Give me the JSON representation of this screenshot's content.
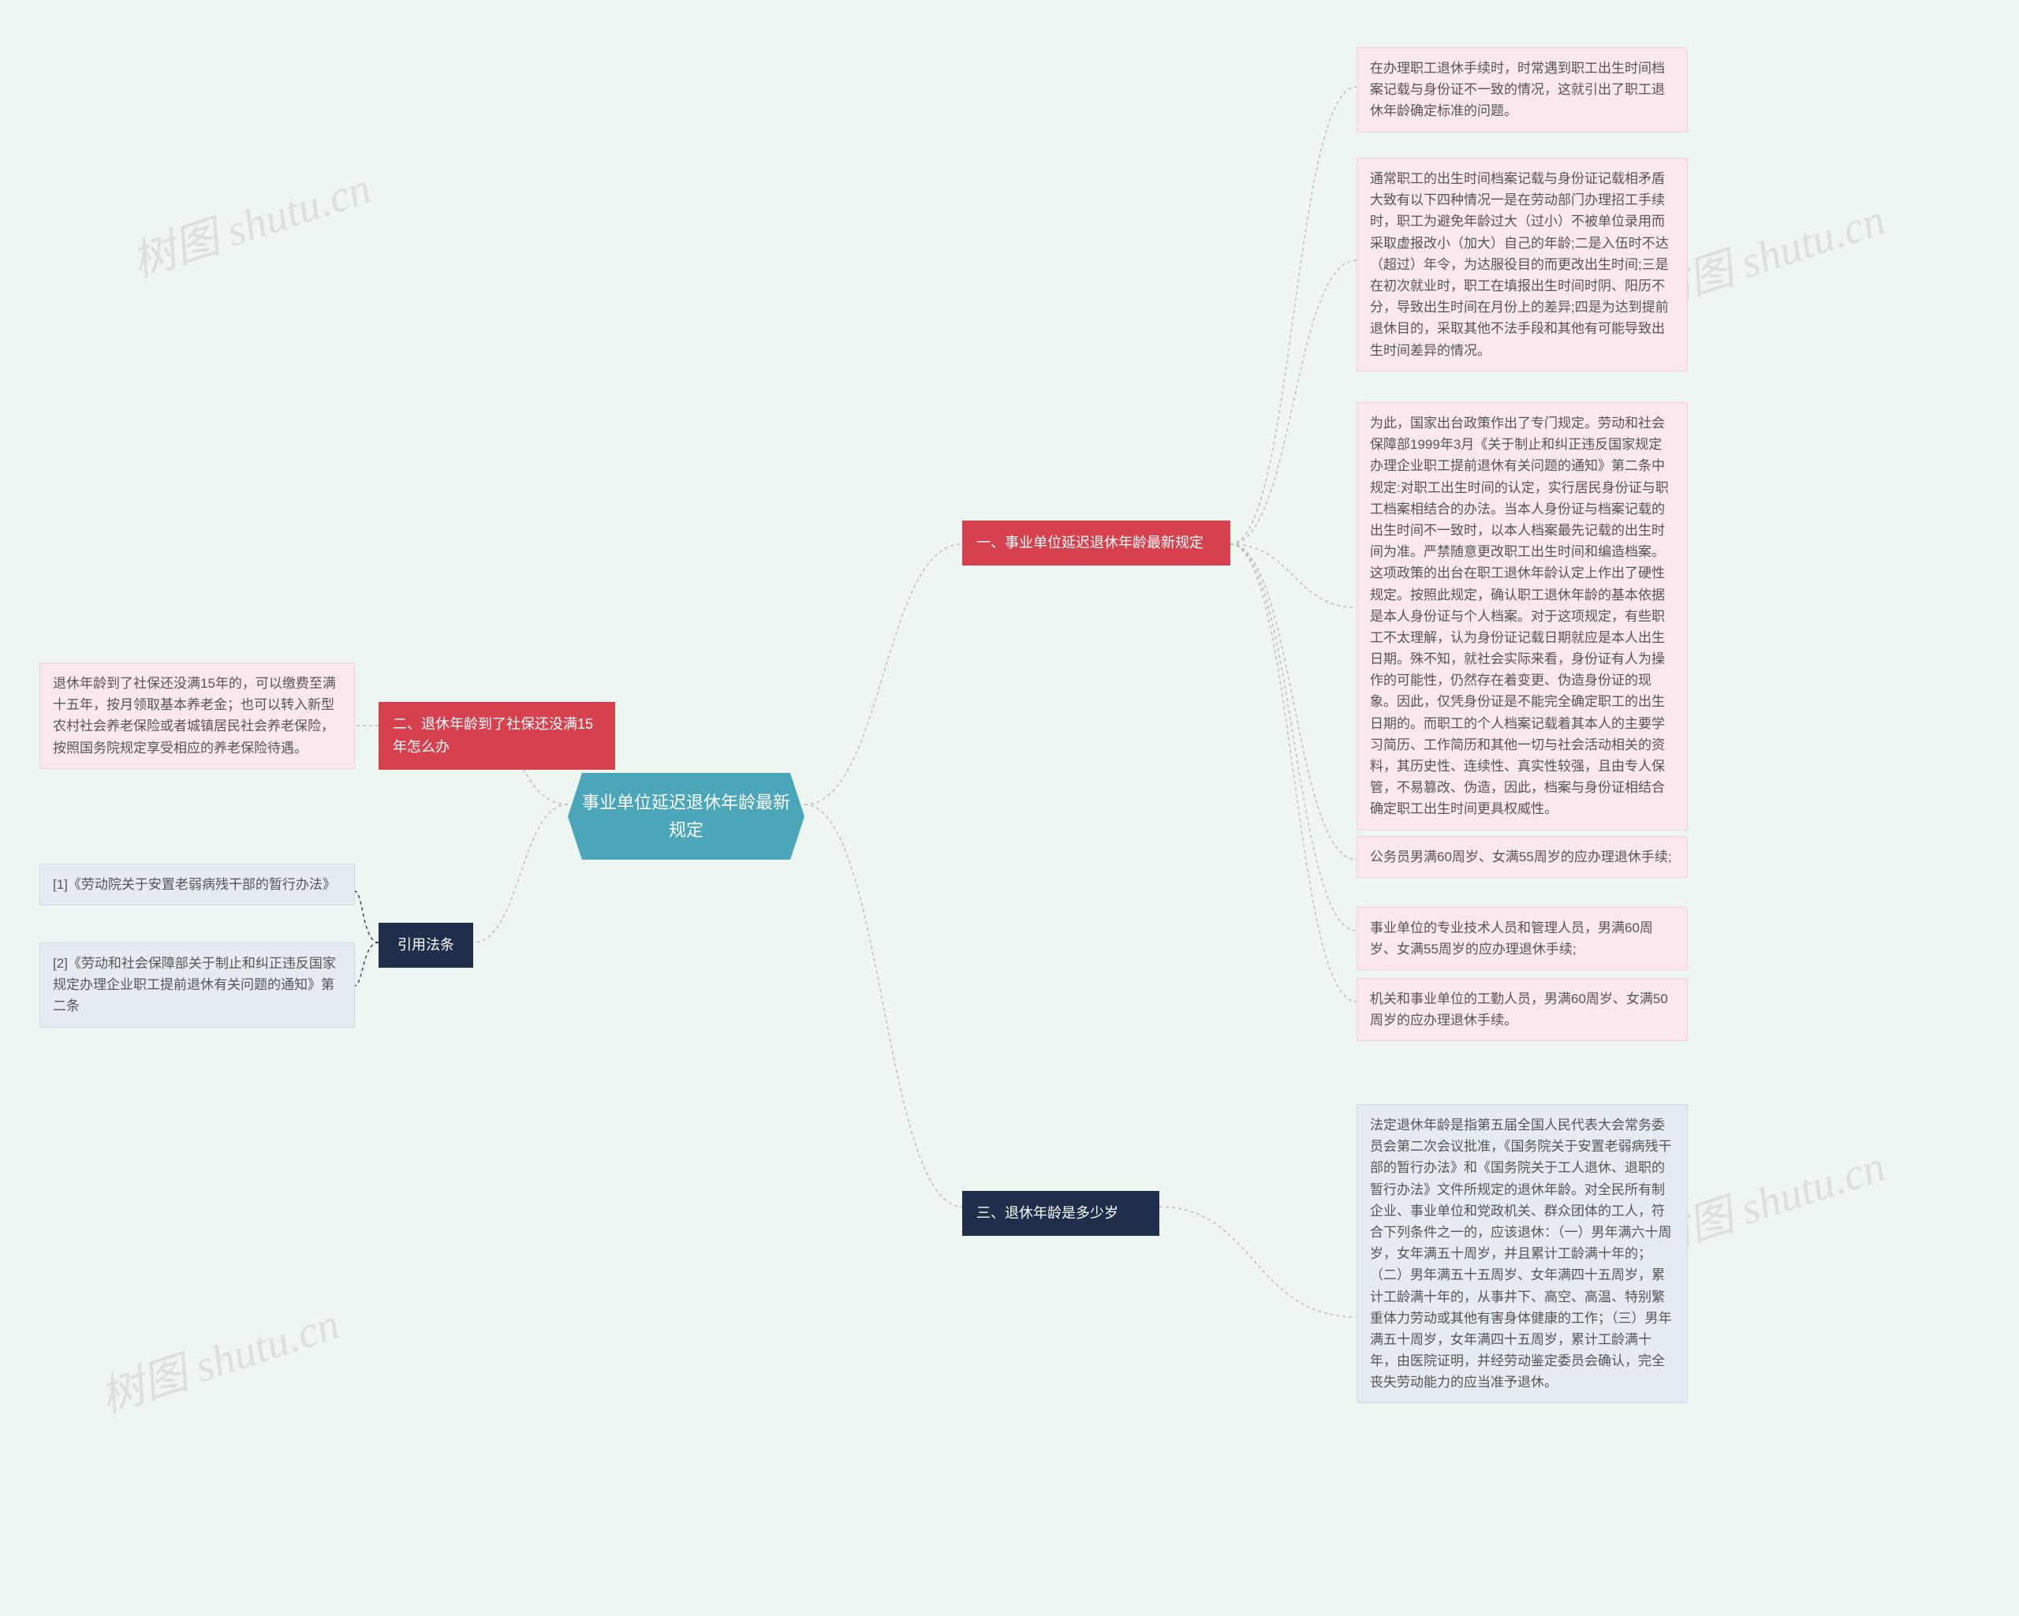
{
  "colors": {
    "page_bg": "#edf6f1",
    "root_bg": "#4aa6b8",
    "branch_red": "#d7414e",
    "branch_navy": "#1f2e4a",
    "leaf_pink_bg": "#fbe8ec",
    "leaf_pink_border": "#f3d0d7",
    "leaf_blue_bg": "#e4ebf3",
    "leaf_blue_border": "#cfd9e6",
    "connector": "#b8b8b8",
    "connector_navy": "#2b3a57",
    "watermark": "rgba(120,120,120,0.16)"
  },
  "watermark_text": "树图 shutu.cn",
  "root": {
    "title": "事业单位延迟退休年龄最新规定"
  },
  "branch1": {
    "title": "一、事业单位延迟退休年龄最新规定",
    "leaf1": "在办理职工退休手续时，时常遇到职工出生时间档案记载与身份证不一致的情况，这就引出了职工退休年龄确定标准的问题。",
    "leaf2": "通常职工的出生时间档案记载与身份证记载相矛盾大致有以下四种情况一是在劳动部门办理招工手续时，职工为避免年龄过大（过小）不被单位录用而采取虚报改小（加大）自己的年龄;二是入伍时不达（超过）年令，为达服役目的而更改出生时间;三是在初次就业时，职工在填报出生时间时阴、阳历不分，导致出生时间在月份上的差异;四是为达到提前退休目的，采取其他不法手段和其他有可能导致出生时间差异的情况。",
    "leaf3": "为此，国家出台政策作出了专门规定。劳动和社会保障部1999年3月《关于制止和纠正违反国家规定办理企业职工提前退休有关问题的通知》第二条中规定:对职工出生时间的认定，实行居民身份证与职工档案相结合的办法。当本人身份证与档案记载的出生时间不一致时，以本人档案最先记载的出生时间为准。严禁随意更改职工出生时间和编造档案。这项政策的出台在职工退休年龄认定上作出了硬性规定。按照此规定，确认职工退休年龄的基本依据是本人身份证与个人档案。对于这项规定，有些职工不太理解，认为身份证记载日期就应是本人出生日期。殊不知，就社会实际来看，身份证有人为操作的可能性，仍然存在着变更、伪造身份证的现象。因此，仅凭身份证是不能完全确定职工的出生日期的。而职工的个人档案记载着其本人的主要学习简历、工作简历和其他一切与社会活动相关的资料，其历史性、连续性、真实性较强，且由专人保管，不易篡改、伪造，因此，档案与身份证相结合确定职工出生时间更具权威性。",
    "leaf4": "公务员男满60周岁、女满55周岁的应办理退休手续;",
    "leaf5": "事业单位的专业技术人员和管理人员，男满60周岁、女满55周岁的应办理退休手续;",
    "leaf6": "机关和事业单位的工勤人员，男满60周岁、女满50周岁的应办理退休手续。"
  },
  "branch2": {
    "title": "二、退休年龄到了社保还没满15年怎么办",
    "leaf1": "退休年龄到了社保还没满15年的，可以缴费至满十五年，按月领取基本养老金；也可以转入新型农村社会养老保险或者城镇居民社会养老保险，按照国务院规定享受相应的养老保险待遇。"
  },
  "branch3": {
    "title": "三、退休年龄是多少岁",
    "leaf1": "法定退休年龄是指第五届全国人民代表大会常务委员会第二次会议批准，《国务院关于安置老弱病残干部的暂行办法》和《国务院关于工人退休、退职的暂行办法》文件所规定的退休年龄。对全民所有制企业、事业单位和党政机关、群众团体的工人，符合下列条件之一的，应该退休：（一）男年满六十周岁，女年满五十周岁，并且累计工龄满十年的；（二）男年满五十五周岁、女年满四十五周岁，累计工龄满十年的，从事井下、高空、高温、特别繁重体力劳动或其他有害身体健康的工作；（三）男年满五十周岁，女年满四十五周岁，累计工龄满十年，由医院证明，并经劳动鉴定委员会确认，完全丧失劳动能力的应当准予退休。"
  },
  "branch4": {
    "title": "引用法条",
    "leaf1": "[1]《劳动院关于安置老弱病残干部的暂行办法》",
    "leaf2": "[2]《劳动和社会保障部关于制止和纠正违反国家规定办理企业职工提前退休有关问题的通知》第二条"
  }
}
